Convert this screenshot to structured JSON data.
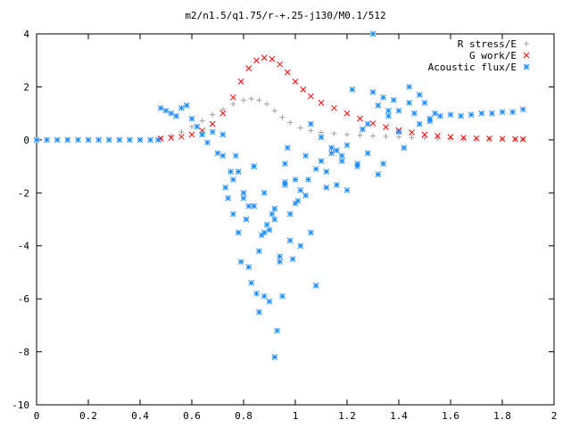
{
  "chart_data": {
    "type": "scatter",
    "title": "m2/n1.5/q1.75/r-+.25-j130/M0.1/512",
    "xlabel": "",
    "ylabel": "",
    "xlim": [
      0,
      2
    ],
    "ylim": [
      -10,
      4
    ],
    "x_ticks": [
      0,
      0.2,
      0.4,
      0.6,
      0.8,
      1,
      1.2,
      1.4,
      1.6,
      1.8,
      2
    ],
    "x_tick_labels": [
      "0",
      "0.2",
      "0.4",
      "0.6",
      "0.8",
      "1",
      "1.2",
      "1.4",
      "1.6",
      "1.8",
      "2"
    ],
    "y_ticks": [
      -10,
      -8,
      -6,
      -4,
      -2,
      0,
      2,
      4
    ],
    "y_tick_labels": [
      "-10",
      "-8",
      "-6",
      "-4",
      "-2",
      "0",
      "2",
      "4"
    ],
    "grid": false,
    "legend_position": "top-right",
    "series": [
      {
        "name": "R stress/E",
        "marker": "plus",
        "color": "#a0a0a0",
        "x": [
          0.48,
          0.52,
          0.56,
          0.6,
          0.64,
          0.68,
          0.72,
          0.76,
          0.8,
          0.83,
          0.86,
          0.89,
          0.92,
          0.95,
          0.98,
          1.02,
          1.06,
          1.1,
          1.15,
          1.2,
          1.25,
          1.3,
          1.35,
          1.4,
          1.45,
          1.5,
          1.55,
          1.6,
          1.65,
          1.7,
          1.75,
          1.8,
          1.85,
          1.88
        ],
        "y": [
          0.05,
          0.15,
          0.3,
          0.5,
          0.72,
          0.95,
          1.15,
          1.35,
          1.5,
          1.55,
          1.5,
          1.35,
          1.1,
          0.85,
          0.65,
          0.45,
          0.35,
          0.28,
          0.24,
          0.2,
          0.17,
          0.15,
          0.13,
          0.11,
          0.09,
          0.08,
          0.06,
          0.05,
          0.04,
          0.03,
          0.03,
          0.02,
          0.02,
          0.02
        ]
      },
      {
        "name": "G work/E",
        "marker": "cross",
        "color": "#ff0000",
        "x": [
          0.48,
          0.52,
          0.56,
          0.6,
          0.64,
          0.68,
          0.72,
          0.76,
          0.79,
          0.82,
          0.85,
          0.88,
          0.91,
          0.94,
          0.97,
          1.0,
          1.03,
          1.06,
          1.1,
          1.15,
          1.2,
          1.25,
          1.3,
          1.35,
          1.4,
          1.45,
          1.5,
          1.55,
          1.6,
          1.65,
          1.7,
          1.75,
          1.8,
          1.85,
          1.88
        ],
        "y": [
          0.05,
          0.08,
          0.12,
          0.2,
          0.35,
          0.6,
          1.0,
          1.6,
          2.2,
          2.7,
          3.0,
          3.1,
          3.05,
          2.85,
          2.55,
          2.2,
          1.9,
          1.65,
          1.4,
          1.2,
          1.0,
          0.8,
          0.62,
          0.48,
          0.36,
          0.28,
          0.2,
          0.15,
          0.11,
          0.08,
          0.06,
          0.05,
          0.04,
          0.03,
          0.02
        ]
      },
      {
        "name": "Acoustic flux/E",
        "marker": "star",
        "color": "#1a8cff",
        "x": [
          0.0,
          0.04,
          0.08,
          0.12,
          0.16,
          0.2,
          0.24,
          0.28,
          0.32,
          0.36,
          0.4,
          0.44,
          0.47,
          0.48,
          0.5,
          0.52,
          0.54,
          0.56,
          0.58,
          0.6,
          0.62,
          0.64,
          0.66,
          0.68,
          0.7,
          0.72,
          0.73,
          0.74,
          0.75,
          0.76,
          0.77,
          0.78,
          0.79,
          0.8,
          0.81,
          0.82,
          0.83,
          0.84,
          0.85,
          0.86,
          0.87,
          0.88,
          0.89,
          0.9,
          0.91,
          0.92,
          0.93,
          0.94,
          0.95,
          0.96,
          0.97,
          0.98,
          0.99,
          1.0,
          1.01,
          1.02,
          1.04,
          1.05,
          1.06,
          1.08,
          1.1,
          1.12,
          1.14,
          1.16,
          1.18,
          1.2,
          1.22,
          1.24,
          1.26,
          1.28,
          1.3,
          1.32,
          1.34,
          1.36,
          1.38,
          1.4,
          1.42,
          1.44,
          1.46,
          1.48,
          1.5,
          1.52,
          1.54,
          1.56,
          1.6,
          1.64,
          1.68,
          1.72,
          1.76,
          1.8,
          1.84,
          1.88,
          0.72,
          0.76,
          0.8,
          0.84,
          0.88,
          0.92,
          0.96,
          1.0,
          1.04,
          1.08,
          1.12,
          1.16,
          1.2,
          1.24,
          1.28,
          1.32,
          1.36,
          1.4,
          1.44,
          1.48,
          1.52,
          0.78,
          0.82,
          0.86,
          0.9,
          0.94,
          0.98,
          1.02,
          0.84,
          0.88,
          0.92,
          0.96,
          1.06,
          1.1,
          1.14,
          1.18,
          1.3,
          1.34
        ],
        "y": [
          0.0,
          0.0,
          0.0,
          0.0,
          0.0,
          0.0,
          0.0,
          0.0,
          0.0,
          0.0,
          0.0,
          0.0,
          0.0,
          1.2,
          1.1,
          1.0,
          0.9,
          1.2,
          1.3,
          0.8,
          0.5,
          0.2,
          -0.1,
          0.3,
          -0.5,
          0.2,
          -1.8,
          -2.2,
          -1.2,
          -2.8,
          -0.6,
          -3.5,
          -4.6,
          -2.0,
          -3.0,
          -4.8,
          -5.4,
          -2.5,
          -5.8,
          -6.5,
          -3.6,
          -5.9,
          -3.2,
          -6.1,
          -2.8,
          -8.2,
          -7.2,
          -4.4,
          -5.9,
          -1.7,
          -0.3,
          -2.8,
          -4.5,
          -1.5,
          -2.3,
          -4.0,
          -2.1,
          -1.5,
          -3.5,
          -5.5,
          -0.8,
          -1.2,
          -0.5,
          -1.7,
          -0.6,
          -0.2,
          1.9,
          -1.0,
          0.4,
          -0.5,
          4.0,
          1.3,
          -0.9,
          0.9,
          1.5,
          1.1,
          -0.3,
          2.0,
          1.0,
          0.6,
          1.4,
          0.8,
          1.0,
          0.9,
          0.95,
          0.9,
          0.95,
          1.0,
          1.0,
          1.05,
          1.05,
          1.15,
          -0.6,
          -1.5,
          -2.2,
          -1.0,
          -3.5,
          -2.6,
          -0.9,
          -2.4,
          -0.6,
          -1.1,
          -1.8,
          -0.4,
          -1.9,
          -0.9,
          0.6,
          -1.3,
          1.1,
          0.3,
          1.4,
          1.7,
          0.7,
          -1.2,
          -2.5,
          -4.2,
          -3.4,
          -4.6,
          -3.8,
          -1.9,
          -1.0,
          -2.0,
          -3.0,
          -1.6,
          0.6,
          0.1,
          -0.3,
          -0.8,
          1.8,
          1.6
        ]
      }
    ]
  }
}
